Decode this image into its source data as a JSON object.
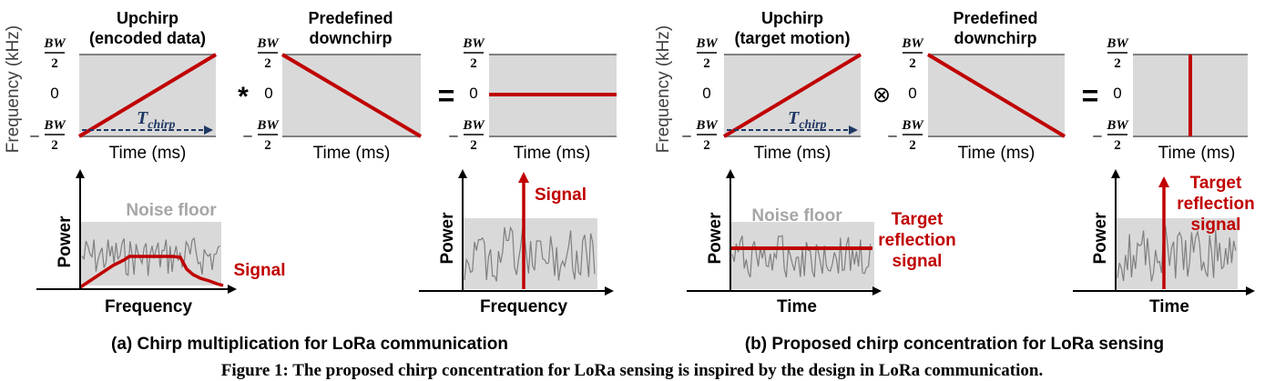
{
  "panel_a": {
    "y_axis_label": "Frequency (kHz)",
    "bw_label": "BW",
    "bw_den": "2",
    "minus": "–",
    "zero": "0",
    "upchirp_title_1": "Upchirp",
    "upchirp_title_2": "(encoded data)",
    "downchirp_title_1": "Predefined",
    "downchirp_title_2": "downchirp",
    "operator_1": "*",
    "operator_2": "=",
    "t_label": "T",
    "t_sub": "chirp",
    "x_axis_label": "Time (ms)",
    "spectrum_left": {
      "noise_label": "Noise floor",
      "signal_label": "Signal",
      "y_label": "Power",
      "x_label": "Frequency"
    },
    "spectrum_right": {
      "signal_label": "Signal",
      "y_label": "Power",
      "x_label": "Frequency"
    },
    "caption": "(a) Chirp multiplication for LoRa communication"
  },
  "panel_b": {
    "y_axis_label": "Frequency (kHz)",
    "upchirp_title_1": "Upchirp",
    "upchirp_title_2": "(target motion)",
    "downchirp_title_1": "Predefined",
    "downchirp_title_2": "downchirp",
    "operator_1": "⊗",
    "operator_2": "=",
    "x_axis_label": "Time (ms)",
    "spectrum_left": {
      "noise_label": "Noise floor",
      "signal_label_1": "Target",
      "signal_label_2": "reflection",
      "signal_label_3": "signal",
      "y_label": "Power",
      "x_label": "Time"
    },
    "spectrum_right": {
      "signal_label_1": "Target",
      "signal_label_2": "reflection",
      "signal_label_3": "signal",
      "y_label": "Power",
      "x_label": "Time"
    },
    "caption": "(b) Proposed chirp concentration for LoRa sensing"
  },
  "figure_caption": "Figure 1: The proposed chirp concentration for LoRa sensing is inspired by the design in LoRa communication.",
  "colors": {
    "panel_fill": "#d9d9d9",
    "chirp_red": "#c00000",
    "arrow_blue": "#1f3864",
    "noise_grey": "#7f7f7f",
    "label_grey": "#a6a6a6",
    "text": "#000000"
  }
}
